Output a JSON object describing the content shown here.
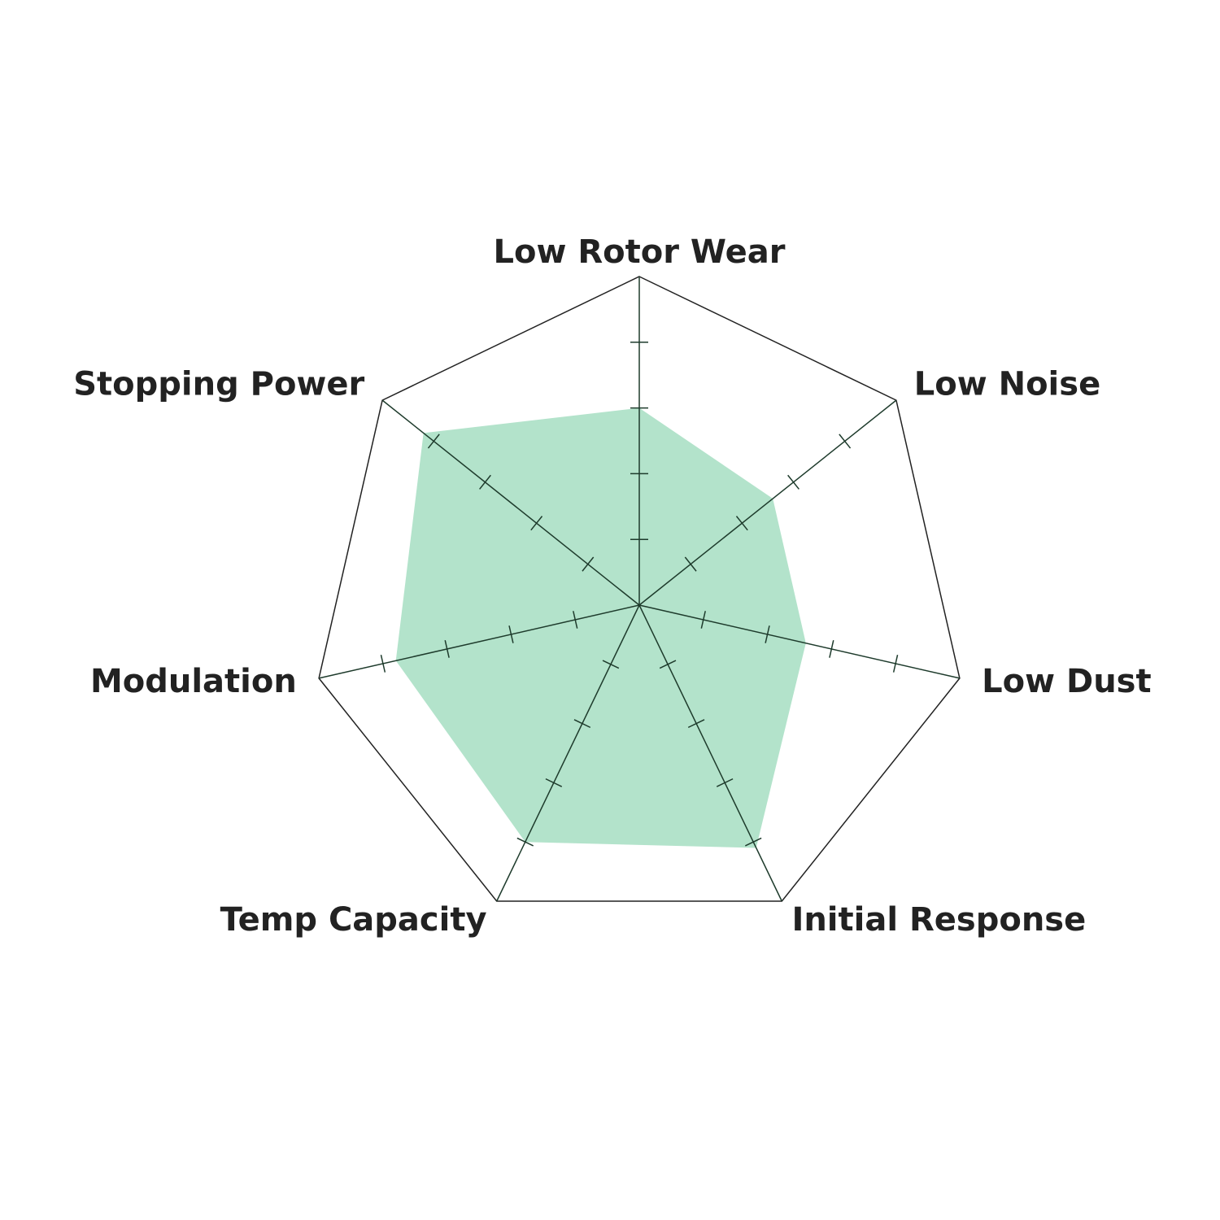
{
  "chart_data": {
    "type": "radar",
    "categories": [
      "Low Rotor Wear",
      "Low Noise",
      "Low Dust",
      "Initial Response",
      "Temp Capacity",
      "Modulation",
      "Stopping Power"
    ],
    "values": [
      3,
      2.6,
      2.6,
      4.1,
      4,
      3.8,
      4.2
    ],
    "color": "#b3e3cb",
    "rlim": [
      0,
      5
    ],
    "rticks": [
      1,
      2,
      3,
      4
    ]
  }
}
